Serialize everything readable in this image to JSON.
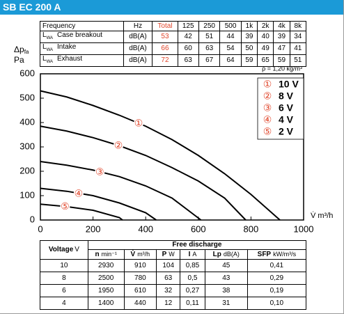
{
  "header": {
    "title": "SB EC 200 A"
  },
  "sound_table": {
    "columns": [
      "Frequency",
      "Hz",
      "Total",
      "125",
      "250",
      "500",
      "1k",
      "2k",
      "4k",
      "8k"
    ],
    "rows": [
      {
        "symbol": "L",
        "symbol_sub": "WA",
        "name": "Case breakout",
        "unit": "dB(A)",
        "values": [
          "53",
          "42",
          "51",
          "44",
          "39",
          "40",
          "39",
          "34"
        ]
      },
      {
        "symbol": "L",
        "symbol_sub": "WA",
        "name": "Intake",
        "unit": "dB(A)",
        "values": [
          "66",
          "60",
          "63",
          "54",
          "50",
          "49",
          "47",
          "41"
        ]
      },
      {
        "symbol": "L",
        "symbol_sub": "WA",
        "name": "Exhaust",
        "unit": "dB(A)",
        "values": [
          "72",
          "63",
          "67",
          "64",
          "59",
          "65",
          "59",
          "51"
        ]
      }
    ]
  },
  "chart_data": {
    "type": "line",
    "y_label": {
      "symbol": "Δp",
      "symbol_sub": "fa",
      "unit": "Pa"
    },
    "x_label": "V̇ m³/h",
    "note": "ρ = 1,20 kg/m³",
    "xlim": [
      0,
      1000
    ],
    "ylim": [
      0,
      600
    ],
    "xticks": [
      0,
      200,
      400,
      600,
      800,
      1000
    ],
    "yticks": [
      0,
      100,
      200,
      300,
      400,
      500,
      600
    ],
    "grid": false,
    "marker_color": "#e0452a",
    "series": [
      {
        "name": "10 V",
        "marker": "①",
        "color": "#000000",
        "x": [
          0,
          100,
          200,
          300,
          400,
          500,
          600,
          700,
          800,
          910
        ],
        "values": [
          530,
          505,
          470,
          430,
          385,
          330,
          265,
          190,
          105,
          0
        ]
      },
      {
        "name": "8 V",
        "marker": "②",
        "color": "#000000",
        "x": [
          0,
          100,
          200,
          300,
          400,
          500,
          600,
          700,
          780
        ],
        "values": [
          385,
          365,
          338,
          305,
          265,
          215,
          160,
          90,
          0
        ]
      },
      {
        "name": "6 V",
        "marker": "③",
        "color": "#000000",
        "x": [
          0,
          100,
          200,
          300,
          400,
          500,
          610
        ],
        "values": [
          240,
          225,
          205,
          178,
          140,
          90,
          0
        ]
      },
      {
        "name": "4 V",
        "marker": "④",
        "color": "#000000",
        "x": [
          0,
          100,
          200,
          300,
          400,
          440
        ],
        "values": [
          130,
          118,
          100,
          70,
          30,
          0
        ]
      },
      {
        "name": "2 V",
        "marker": "⑤",
        "color": "#000000",
        "x": [
          0,
          100,
          200,
          300,
          312
        ],
        "values": [
          65,
          55,
          40,
          10,
          0
        ]
      }
    ]
  },
  "performance_table": {
    "voltage_header": {
      "name": "Voltage",
      "unit": "V"
    },
    "group_header": "Free discharge",
    "columns": [
      {
        "symbol": "n",
        "unit": "min⁻¹"
      },
      {
        "symbol": "V̇",
        "unit": "m³/h"
      },
      {
        "symbol": "P",
        "unit": "W"
      },
      {
        "symbol": "I",
        "unit": "A"
      },
      {
        "symbol": "Lp",
        "unit": "dB(A)"
      },
      {
        "symbol": "SFP",
        "unit": "kW/m³/s"
      }
    ],
    "rows": [
      [
        "10",
        "2930",
        "910",
        "104",
        "0,85",
        "45",
        "0,41"
      ],
      [
        "8",
        "2500",
        "780",
        "63",
        "0,5",
        "43",
        "0,29"
      ],
      [
        "6",
        "1950",
        "610",
        "32",
        "0,27",
        "38",
        "0,19"
      ],
      [
        "4",
        "1400",
        "440",
        "12",
        "0,11",
        "31",
        "0,10"
      ]
    ]
  }
}
